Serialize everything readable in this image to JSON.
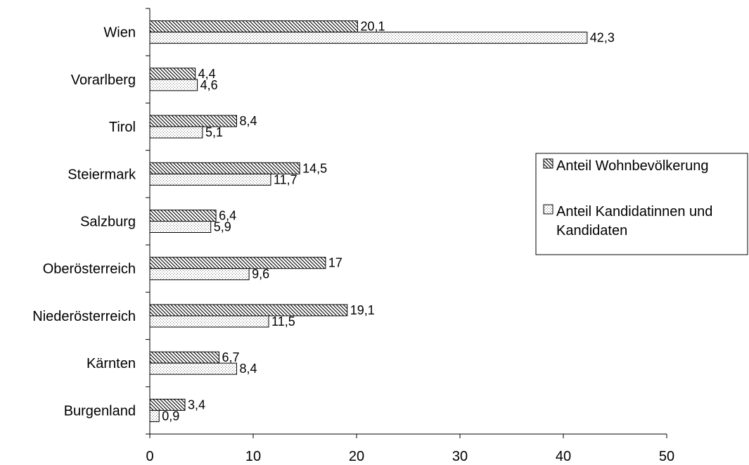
{
  "chart_data": {
    "type": "bar",
    "orientation": "horizontal",
    "title": "",
    "xlabel": "",
    "ylabel": "",
    "xlim": [
      0,
      50
    ],
    "x_ticks": [
      0,
      10,
      20,
      30,
      40,
      50
    ],
    "grid": false,
    "legend_position": "right",
    "categories": [
      "Wien",
      "Vorarlberg",
      "Tirol",
      "Steiermark",
      "Salzburg",
      "Oberösterreich",
      "Niederösterreich",
      "Kärnten",
      "Burgenland"
    ],
    "series": [
      {
        "name": "Anteil Wohnbevölkerung",
        "pattern": "diagonal-hatch",
        "values": [
          20.1,
          4.4,
          8.4,
          14.5,
          6.4,
          17,
          19.1,
          6.7,
          3.4
        ],
        "labels": [
          "20,1",
          "4,4",
          "8,4",
          "14,5",
          "6,4",
          "17",
          "19,1",
          "6,7",
          "3,4"
        ]
      },
      {
        "name": "Anteil Kandidatinnen und Kandidaten",
        "legend_lines": [
          "Anteil Kandidatinnen und",
          "Kandidaten"
        ],
        "pattern": "dotted",
        "values": [
          42.3,
          4.6,
          5.1,
          11.7,
          5.9,
          9.6,
          11.5,
          8.4,
          0.9
        ],
        "labels": [
          "42,3",
          "4,6",
          "5,1",
          "11,7",
          "5,9",
          "9,6",
          "11,5",
          "8,4",
          "0,9"
        ]
      }
    ],
    "colors": {
      "ink": "#000000",
      "background": "#ffffff",
      "hatch": "#000000",
      "dots": "#7a7a7a"
    }
  }
}
